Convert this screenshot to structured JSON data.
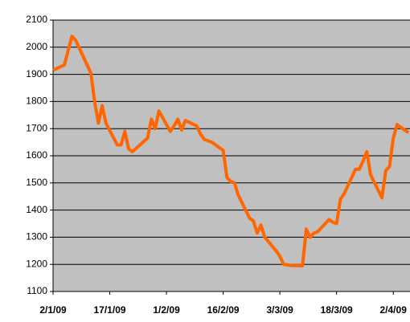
{
  "chart_data": {
    "type": "line",
    "x": [
      "2/1/09",
      "5/1/09",
      "7/1/09",
      "8/1/09",
      "9/1/09",
      "12/1/09",
      "13/1/09",
      "14/1/09",
      "15/1/09",
      "16/1/09",
      "19/1/09",
      "20/1/09",
      "21/1/09",
      "22/1/09",
      "23/1/09",
      "27/1/09",
      "28/1/09",
      "29/1/09",
      "30/1/09",
      "2/2/09",
      "3/2/09",
      "4/2/09",
      "5/2/09",
      "6/2/09",
      "9/2/09",
      "10/2/09",
      "11/2/09",
      "12/2/09",
      "13/2/09",
      "16/2/09",
      "17/2/09",
      "18/2/09",
      "19/2/09",
      "20/2/09",
      "23/2/09",
      "24/2/09",
      "25/2/09",
      "26/2/09",
      "27/2/09",
      "2/3/09",
      "3/3/09",
      "4/3/09",
      "5/3/09",
      "6/3/09",
      "9/3/09",
      "10/3/09",
      "11/3/09",
      "12/3/09",
      "13/3/09",
      "16/3/09",
      "17/3/09",
      "18/3/09",
      "19/3/09",
      "20/3/09",
      "23/3/09",
      "24/3/09",
      "25/3/09",
      "26/3/09",
      "27/3/09",
      "30/3/09",
      "31/3/09",
      "1/4/09",
      "2/4/09",
      "3/4/09",
      "6/4/09"
    ],
    "series": [
      {
        "color": "#ff6600",
        "values": [
          1915,
          1935,
          2040,
          2025,
          1995,
          1905,
          1800,
          1720,
          1785,
          1720,
          1640,
          1640,
          1690,
          1625,
          1615,
          1665,
          1735,
          1700,
          1765,
          1690,
          1710,
          1735,
          1695,
          1730,
          1710,
          1680,
          1660,
          1655,
          1650,
          1620,
          1520,
          1505,
          1500,
          1455,
          1370,
          1360,
          1315,
          1345,
          1300,
          1250,
          1230,
          1200,
          1198,
          1196,
          1195,
          1330,
          1300,
          1315,
          1320,
          1365,
          1355,
          1350,
          1440,
          1460,
          1550,
          1550,
          1580,
          1615,
          1530,
          1445,
          1545,
          1560,
          1665,
          1715,
          1685
        ]
      }
    ],
    "xlim": [
      "2/1/09",
      "6/4/09"
    ],
    "xticks": [
      "2/1/09",
      "17/1/09",
      "1/2/09",
      "16/2/09",
      "3/3/09",
      "18/3/09",
      "2/4/09"
    ],
    "ylim": [
      1100,
      2100
    ],
    "yticks": [
      1100,
      1200,
      1300,
      1400,
      1500,
      1600,
      1700,
      1800,
      1900,
      2000,
      2100
    ],
    "grid": true
  }
}
